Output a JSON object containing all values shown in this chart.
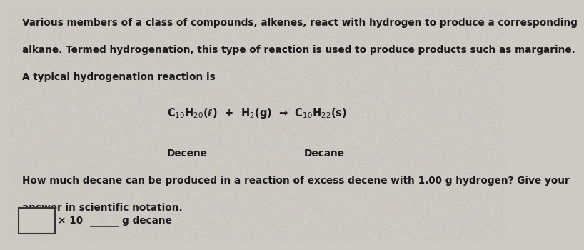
{
  "bg_color": "#cdc9c3",
  "text_color": "#1a1a1a",
  "paragraph1_line1": "Various members of a class of compounds, alkenes, react with hydrogen to produce a corresponding",
  "paragraph1_line2": "alkane. Termed hydrogenation, this type of reaction is used to produce products such as margarine.",
  "paragraph1_line3": "A typical hydrogenation reaction is",
  "equation": "C$_{10}$H$_{20}$(ℓ)  +  H$_2$(g)  →  C$_{10}$H$_{22}$(s)",
  "label_left": "Decene",
  "label_right": "Decane",
  "paragraph2_line1": "How much decane can be produced in a reaction of excess decene with 1.00 g hydrogen? Give your",
  "paragraph2_line2": "answer in scientific notation.",
  "answer_x10": "× 10",
  "answer_suffix": "g decane",
  "font_size_body": 9.8,
  "font_size_eq": 10.5,
  "font_size_label": 9.8,
  "noise_seed": 42
}
